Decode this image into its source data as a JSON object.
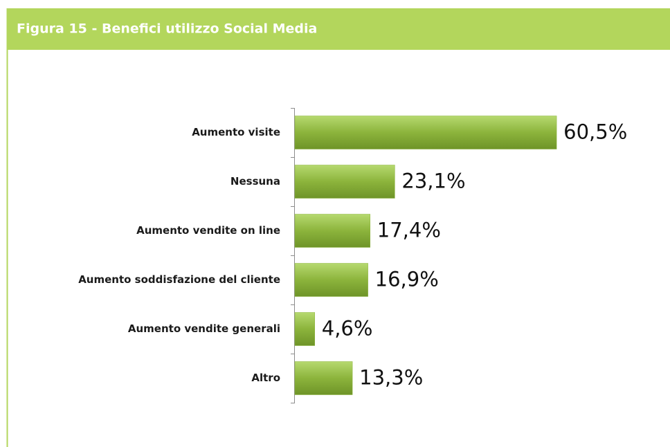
{
  "chart_data": {
    "type": "bar",
    "orientation": "horizontal",
    "title": "Figura 15 -  Benefici utilizzo Social Media",
    "categories": [
      "Aumento visite",
      "Nessuna",
      "Aumento vendite on line",
      "Aumento soddisfazione del cliente",
      "Aumento vendite generali",
      "Altro"
    ],
    "values": [
      60.5,
      23.1,
      17.4,
      16.9,
      4.6,
      13.3
    ],
    "value_labels": [
      "60,5%",
      "23,1%",
      "17,4%",
      "16,9%",
      "4,6%",
      "13,3%"
    ],
    "color": "#8cb43c"
  }
}
